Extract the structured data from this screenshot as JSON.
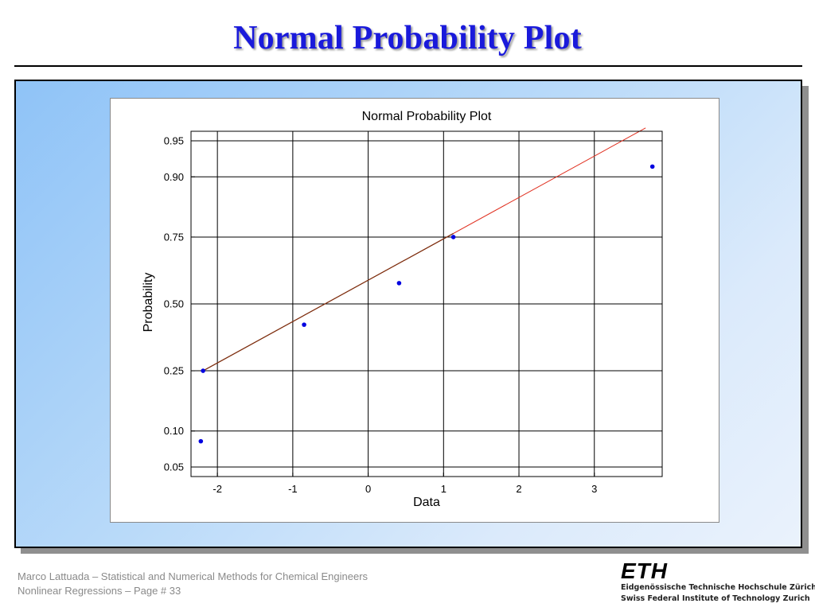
{
  "slide": {
    "title": "Normal Probability Plot"
  },
  "footer": {
    "line1": "Marco Lattuada – Statistical and Numerical Methods for Chemical Engineers",
    "line2": "Nonlinear Regressions – Page #  33"
  },
  "logo": {
    "mark": "ETH",
    "line1": "Eidgenössische Technische Hochschule Zürich",
    "line2": "Swiss Federal Institute of Technology Zurich"
  },
  "colors": {
    "title": "#1a1adb",
    "points": "#0000e0",
    "fit_line": "#e03020",
    "fit_line_overlap": "#7a3010"
  },
  "chart_data": {
    "type": "scatter",
    "title": "Normal Probability Plot",
    "xlabel": "Data",
    "ylabel": "Probability",
    "xlim": [
      -2.35,
      3.9
    ],
    "ylim": [
      0.05,
      0.95
    ],
    "y_scale": "normal-probability",
    "grid": true,
    "x_ticks": [
      -2,
      -1,
      0,
      1,
      2,
      3
    ],
    "x_tick_labels": [
      "-2",
      "-1",
      "0",
      "1",
      "2",
      "3"
    ],
    "y_ticks": [
      0.05,
      0.1,
      0.25,
      0.5,
      0.75,
      0.9,
      0.95
    ],
    "y_tick_labels": [
      "0.05",
      "0.10",
      "0.25",
      "0.50",
      "0.75",
      "0.90",
      "0.95"
    ],
    "points": [
      {
        "x": -2.22,
        "y": 0.083
      },
      {
        "x": -2.19,
        "y": 0.25
      },
      {
        "x": -0.85,
        "y": 0.417
      },
      {
        "x": 0.41,
        "y": 0.583
      },
      {
        "x": 1.13,
        "y": 0.75
      },
      {
        "x": 3.77,
        "y": 0.917
      }
    ],
    "fit_line": {
      "from": {
        "x": -2.19,
        "y": 0.25
      },
      "to": {
        "x": 3.68,
        "y": 0.962
      },
      "overlap_until_x": 1.13
    }
  }
}
